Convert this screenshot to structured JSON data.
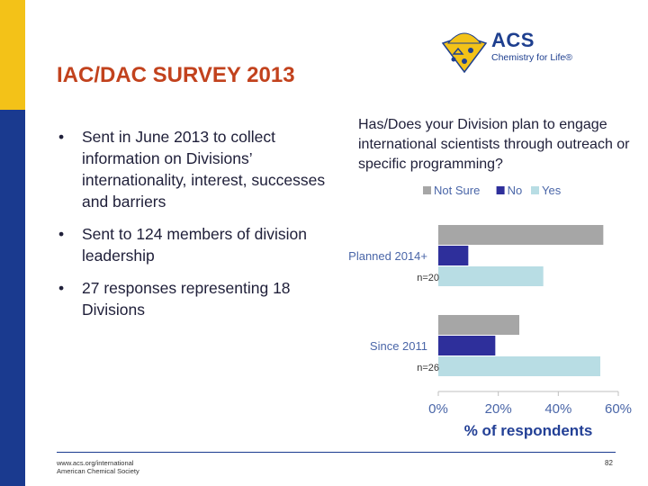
{
  "slide": {
    "title": "IAC/DAC SURVEY 2013",
    "bullets": [
      "Sent in June 2013 to collect information on Divisions’ internationality, interest, successes and barriers",
      "Sent to 124 members of division leadership",
      "27 responses representing 18 Divisions"
    ],
    "question": "Has/Does your Division plan to engage international scientists through outreach or specific programming?",
    "footer": {
      "url": "www.acs.org/international",
      "org": "American Chemical Society",
      "page": "82"
    }
  },
  "logo": {
    "name": "ACS",
    "tagline": "Chemistry for Life®",
    "colors": {
      "gold": "#f3c218",
      "blue": "#1e3f8f"
    }
  },
  "chart_data": {
    "type": "bar",
    "orientation": "horizontal",
    "categories": [
      "Planned 2014+",
      "Since 2011"
    ],
    "category_notes": [
      "n=20",
      "n=26"
    ],
    "series": [
      {
        "name": "Not Sure",
        "color": "#a6a6a6",
        "values": [
          55,
          27
        ]
      },
      {
        "name": "No",
        "color": "#2e2f9b",
        "values": [
          10,
          19
        ]
      },
      {
        "name": "Yes",
        "color": "#b8dde4",
        "values": [
          35,
          54
        ]
      }
    ],
    "xlabel": "% of respondents",
    "xlim": [
      0,
      60
    ],
    "xticks": [
      "0%",
      "20%",
      "40%",
      "60%"
    ],
    "tick_values": [
      0,
      20,
      40,
      60
    ],
    "legend_position": "top",
    "grid": false
  }
}
